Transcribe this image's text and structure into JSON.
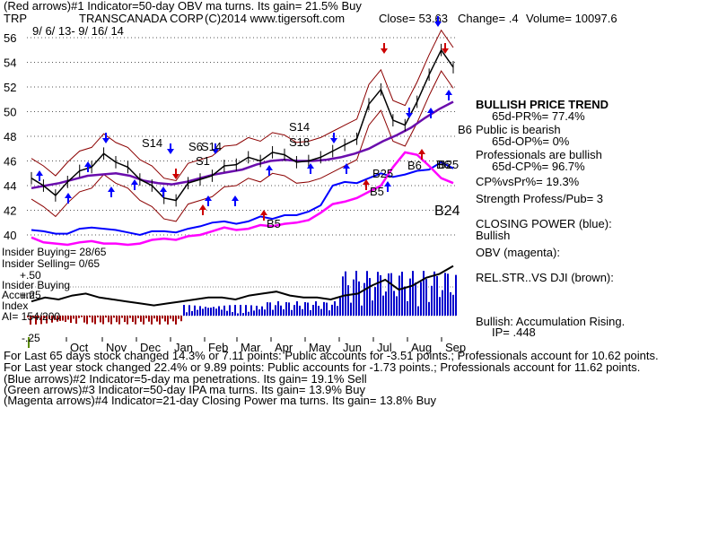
{
  "header": {
    "line1": "(Red arrows)#1 Indicator=50-day OBV ma turns. Its gain= 21.5% Buy",
    "ticker": "TRP",
    "company": "TRANSCANADA CORP",
    "copyright": "(C)2014 www.tigersoft.com",
    "close": "Close=  53.63",
    "change": "Change= .4",
    "volume": "Volume= 10097.6",
    "date_range": "9/ 6/ 13- 9/ 16/ 14"
  },
  "chart_data": {
    "type": "line",
    "title": "TRANSCANADA CORP",
    "x_tick_labels": [
      "Oct",
      "Nov",
      "Dec",
      "Jan",
      "Feb",
      "Mar",
      "Apr",
      "May",
      "Jun",
      "Jul",
      "Aug",
      "Sep"
    ],
    "y_tick_labels": [
      "56",
      "54",
      "52",
      "50",
      "48",
      "46",
      "44",
      "42",
      "40"
    ],
    "ylim": [
      39.5,
      57
    ],
    "grid": "horizontal dotted",
    "series": [
      {
        "values": [
          44.6,
          44.0,
          43.2,
          44.3,
          45.2,
          45.5,
          46.6,
          45.9,
          45.5,
          44.5,
          44.0,
          43.0,
          42.8,
          44.2,
          44.5,
          44.8,
          45.6,
          45.7,
          46.3,
          46.0,
          46.7,
          46.5,
          45.9,
          46.0,
          46.3,
          46.8,
          47.3,
          47.8,
          50.6,
          51.8,
          49.3,
          48.9,
          50.8,
          53.0,
          55.0,
          53.6
        ]
      },
      {
        "values": [
          43.8,
          44.0,
          44.2,
          44.5,
          44.8,
          44.9,
          45.0,
          44.8,
          44.4,
          44.2,
          44.1,
          44.3,
          44.6,
          44.9,
          45.1,
          45.3,
          45.7,
          46.0,
          46.1,
          46.0,
          46.0,
          46.1,
          46.3,
          46.6,
          47.0,
          47.6,
          48.1,
          48.7,
          49.5,
          50.2,
          50.8
        ]
      },
      {
        "values": [
          40.4,
          40.3,
          40.1,
          40.1,
          40.5,
          40.6,
          40.5,
          40.4,
          40.2,
          40.0,
          40.3,
          40.3,
          40.2,
          40.5,
          40.7,
          41.0,
          41.1,
          40.9,
          41.1,
          41.5,
          41.3,
          41.6,
          41.6,
          41.9,
          42.4,
          44.0,
          44.3,
          44.2,
          44.6,
          45.0,
          44.7,
          44.9,
          45.2,
          45.3,
          45.9,
          45.4
        ]
      },
      {
        "values": [
          39.8,
          39.4,
          39.3,
          39.2,
          39.4,
          39.5,
          39.3,
          39.3,
          39.2,
          39.3,
          39.6,
          39.7,
          39.6,
          39.9,
          40.0,
          40.3,
          40.6,
          40.4,
          40.5,
          40.8,
          40.7,
          40.9,
          41.0,
          41.2,
          41.8,
          42.5,
          42.7,
          43.0,
          43.5,
          44.0,
          45.5,
          46.7,
          46.5,
          45.6,
          44.6,
          44.2
        ]
      },
      {
        "values": [
          4,
          6,
          5,
          7,
          8,
          6,
          5,
          4,
          3,
          2,
          3,
          4,
          5,
          6,
          6,
          5,
          7,
          8,
          9,
          7,
          6,
          6,
          5,
          7,
          8,
          12,
          15,
          10,
          12,
          16,
          18,
          22
        ]
      }
    ]
  },
  "signals": [
    "S14",
    "S1",
    "S6",
    "S14",
    "S14",
    "S18",
    "B5",
    "B25",
    "B5",
    "B6",
    "B6",
    "B25",
    "B6",
    "B24"
  ],
  "sub_labels": {
    "insider_buying": "Insider Buying= 28/65",
    "insider_selling": "Insider Selling= 0/65",
    "plus50": "+.50",
    "insider_buying2": "Insider Buying",
    "accum": "Accum",
    "plus25": "+.25",
    "index": "Index",
    "ai": "AI= 154/200",
    "minus25": "-.25"
  },
  "panel": {
    "trend_title": "BULLISH PRICE TREND",
    "pr_line": "65d-PR%= 77.4%",
    "public_line": "Public is bearish",
    "op_line": "65d-OP%= 0%",
    "prof_line": "Professionals are bullish",
    "cp_line": "65d-CP%= 96.7%",
    "cpvspr": "CP%vsPr%=  19.3%",
    "strength": "Strength Profess/Pub= 3",
    "closing_power": "CLOSING POWER (blue):",
    "closing_power_val": "Bullish",
    "obv": "OBV (magenta):",
    "relstr": "REL.STR..VS DJI (brown):",
    "accum_rising": "Bullish: Accumulation Rising.",
    "ip": "IP=  .448"
  },
  "footer": [
    "For Last 65 days stock changed  14.3% or  7.11 points:  Public accounts for -3.51 points.;  Professionals account for  10.62 points.",
    "For Last year stock changed  22.4% or  9.89 points:  Public accounts for -1.73 points.;  Professionals account for  11.62 points.",
    "(Blue arrows)#2 Indicator=5-day ma penetrations. Its gain= 19.1% Sell",
    "(Green arrows)#3 Indicator=50-day IPA ma turns. Its gain= 13.9% Buy",
    "(Magenta arrows)#4 Indicator=21-day Closing Power ma turns. Its gain= 13.8% Buy"
  ],
  "colors": {
    "price": "#000000",
    "band": "#8b0000",
    "ma": "#6a0dad",
    "closing_power": "#0000ff",
    "obv": "#ff00ff",
    "accum": "#0000cc",
    "red_arrow": "#cc0000",
    "blue_arrow": "#0000ff"
  }
}
